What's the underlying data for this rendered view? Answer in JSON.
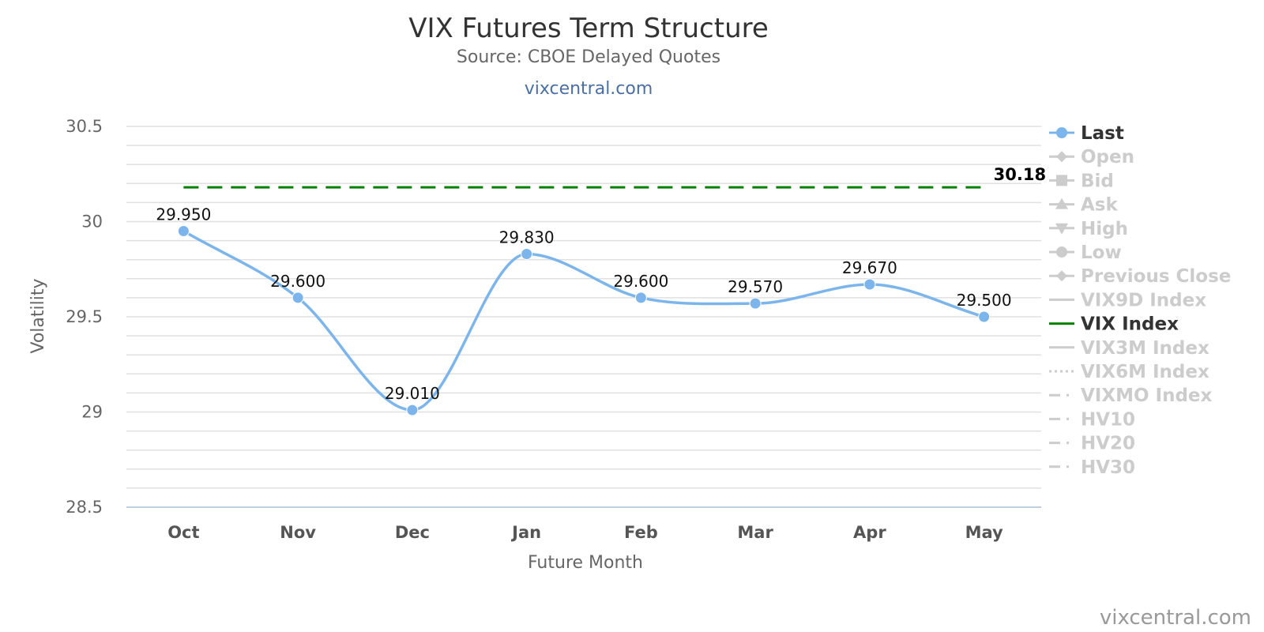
{
  "header": {
    "title": "VIX Futures Term Structure",
    "subtitle": "Source: CBOE Delayed Quotes",
    "link": "vixcentral.com"
  },
  "credit": "vixcentral.com",
  "chart_data": {
    "type": "line",
    "title": "VIX Futures Term Structure",
    "subtitle": "Source: CBOE Delayed Quotes",
    "xlabel": "Future Month",
    "ylabel": "Volatility",
    "categories": [
      "Oct",
      "Nov",
      "Dec",
      "Jan",
      "Feb",
      "Mar",
      "Apr",
      "May"
    ],
    "ylim": [
      28.5,
      30.5
    ],
    "yticks": [
      "30.5",
      "30",
      "29.5",
      "29",
      "28.5"
    ],
    "grid": true,
    "legend_position": "right",
    "series": [
      {
        "name": "Last",
        "color": "#7cb5ec",
        "values": [
          29.95,
          29.6,
          29.01,
          29.83,
          29.6,
          29.57,
          29.67,
          29.5
        ],
        "labels": [
          "29.950",
          "29.600",
          "29.010",
          "29.830",
          "29.600",
          "29.570",
          "29.670",
          "29.500"
        ]
      },
      {
        "name": "VIX Index",
        "color": "#008000",
        "style": "dashed",
        "value": 30.18,
        "label": "30.18"
      }
    ],
    "legend": [
      {
        "name": "Last",
        "active": true,
        "symbol": "circle",
        "color": "#7cb5ec"
      },
      {
        "name": "Open",
        "active": false,
        "symbol": "diamond"
      },
      {
        "name": "Bid",
        "active": false,
        "symbol": "square"
      },
      {
        "name": "Ask",
        "active": false,
        "symbol": "triangle"
      },
      {
        "name": "High",
        "active": false,
        "symbol": "triangle-down"
      },
      {
        "name": "Low",
        "active": false,
        "symbol": "circle"
      },
      {
        "name": "Previous Close",
        "active": false,
        "symbol": "diamond"
      },
      {
        "name": "VIX9D Index",
        "active": false,
        "symbol": "line"
      },
      {
        "name": "VIX Index",
        "active": true,
        "symbol": "line",
        "color": "#008000"
      },
      {
        "name": "VIX3M Index",
        "active": false,
        "symbol": "line"
      },
      {
        "name": "VIX6M Index",
        "active": false,
        "symbol": "dotted"
      },
      {
        "name": "VIXMO Index",
        "active": false,
        "symbol": "dashdot"
      },
      {
        "name": "HV10",
        "active": false,
        "symbol": "dashdot"
      },
      {
        "name": "HV20",
        "active": false,
        "symbol": "dashdot"
      },
      {
        "name": "HV30",
        "active": false,
        "symbol": "dashdot"
      }
    ]
  }
}
